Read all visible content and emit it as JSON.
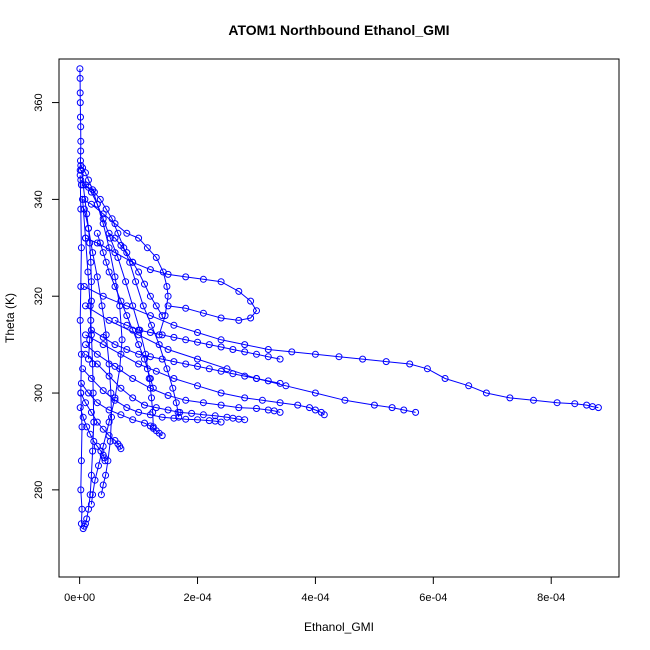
{
  "chart_data": {
    "type": "scatter",
    "title": "ATOM1 Northbound Ethanol_GMI",
    "xlabel": "Ethanol_GMI",
    "ylabel": "Theta (K)",
    "xlim": [
      -3.5e-05,
      0.000915
    ],
    "ylim": [
      262,
      369
    ],
    "grid": false,
    "legend": "none",
    "marker": "open-circle",
    "connected": true,
    "color": "#0000ff",
    "x_ticks": [
      {
        "value": 0,
        "label": "0e+00"
      },
      {
        "value": 0.0002,
        "label": "2e-04"
      },
      {
        "value": 0.0004,
        "label": "4e-04"
      },
      {
        "value": 0.0006,
        "label": "6e-04"
      },
      {
        "value": 0.0008,
        "label": "8e-04"
      }
    ],
    "y_ticks": [
      {
        "value": 280,
        "label": "280"
      },
      {
        "value": 300,
        "label": "300"
      },
      {
        "value": 320,
        "label": "320"
      },
      {
        "value": 340,
        "label": "340"
      },
      {
        "value": 360,
        "label": "360"
      }
    ],
    "series": [
      {
        "x": [
          5e-07,
          8e-07,
          1e-06,
          1.2e-06,
          1.5e-06,
          1.8e-06,
          2e-06,
          1.8e-06,
          1.5e-06,
          1e-06
        ],
        "y": [
          367,
          365,
          362,
          360,
          357,
          355,
          352,
          350,
          348,
          346
        ]
      },
      {
        "x": [
          2e-06,
          5e-06,
          1e-05,
          1.5e-05,
          2.2e-05,
          3e-05,
          4e-05,
          5e-05,
          6e-05,
          6.8e-05,
          7.2e-05,
          6.8e-05,
          6e-05,
          5e-05,
          4e-05,
          3.2e-05,
          2.6e-05,
          2.2e-05,
          2e-05
        ],
        "y": [
          347,
          346.5,
          345.5,
          344,
          342,
          339,
          335,
          330,
          324,
          318,
          311,
          305,
          299,
          294,
          289,
          285,
          282,
          279,
          277
        ]
      },
      {
        "x": [
          2e-06,
          1e-05,
          2e-05,
          3e-05,
          4e-05,
          5.2e-05,
          6.5e-05,
          7.8e-05,
          9e-05,
          0.000102,
          0.000112,
          0.000118,
          0.000122,
          0.000124,
          0.000125
        ],
        "y": [
          344,
          343,
          341.5,
          339,
          336,
          332,
          328,
          323,
          318,
          313,
          308,
          303,
          299,
          296,
          293
        ]
      },
      {
        "x": [
          3e-06,
          1.5e-05,
          2.5e-05,
          3.5e-05,
          4.5e-05,
          5.5e-05,
          6.5e-05,
          7.5e-05,
          8.5e-05,
          9.5e-05,
          0.000108,
          0.000122,
          0.000135,
          0.000148,
          0.000158,
          0.000164,
          0.000167,
          0.000168
        ],
        "y": [
          343,
          342.5,
          341.5,
          340,
          338,
          336,
          333,
          330,
          327,
          323,
          318,
          314,
          310,
          305,
          301,
          298,
          296,
          295
        ]
      },
      {
        "x": [
          5e-06,
          2e-05,
          4e-05,
          6e-05,
          8e-05,
          0.0001,
          0.000115,
          0.00013,
          0.000142,
          0.000148,
          0.00015,
          0.000145,
          0.000135
        ],
        "y": [
          340,
          339,
          337,
          335,
          333,
          332,
          330,
          328,
          325,
          322,
          320,
          316,
          312
        ]
      },
      {
        "x": [
          1e-05,
          3e-05,
          6e-05,
          9e-05,
          0.00012,
          0.00015,
          0.00018,
          0.00021,
          0.00024,
          0.00027,
          0.00029,
          0.0003,
          0.00029,
          0.00027,
          0.00024,
          0.00021,
          0.00018,
          0.00015
        ],
        "y": [
          332,
          331,
          329,
          327,
          325.5,
          324.5,
          324,
          323.5,
          323,
          321,
          319,
          317,
          315.5,
          315,
          315.5,
          316.5,
          317.5,
          318
        ]
      },
      {
        "x": [
          8e-06,
          4e-05,
          8e-05,
          0.00012,
          0.00016,
          0.0002,
          0.00024,
          0.00028,
          0.00032,
          0.00036,
          0.0004,
          0.00044,
          0.00048,
          0.00052,
          0.00056,
          0.00059,
          0.00062,
          0.00066,
          0.00069,
          0.00073,
          0.00077,
          0.00081,
          0.00084,
          0.00086,
          0.00087,
          0.00088
        ],
        "y": [
          322,
          320,
          318,
          316,
          314,
          312.5,
          311,
          310,
          309,
          308.5,
          308,
          307.5,
          307,
          306.5,
          306,
          305,
          303,
          301.5,
          300,
          299,
          298.5,
          298,
          297.8,
          297.5,
          297.2,
          297
        ]
      },
      {
        "x": [
          1e-05,
          5e-05,
          0.0001,
          0.00015,
          0.0002,
          0.00025,
          0.0003,
          0.00035,
          0.0004,
          0.00045,
          0.0005,
          0.00053,
          0.00055,
          0.00057
        ],
        "y": [
          318,
          315,
          312,
          309,
          307,
          305,
          303,
          301.5,
          300,
          298.5,
          297.5,
          297,
          296.5,
          296
        ]
      },
      {
        "x": [
          1e-05,
          4e-05,
          7e-05,
          0.0001,
          0.00013,
          0.00016,
          0.0002,
          0.00024,
          0.00028,
          0.00031,
          0.00034,
          0.00037,
          0.00039,
          0.0004,
          0.00041,
          0.000415
        ],
        "y": [
          312,
          310,
          308,
          306,
          304.5,
          303,
          301.5,
          300,
          299,
          298.5,
          298,
          297.5,
          297,
          296.5,
          296,
          295.5
        ]
      },
      {
        "x": [
          1e-05,
          3e-05,
          6e-05,
          9e-05,
          0.00012,
          0.00015,
          0.00018,
          0.00021,
          0.00024,
          0.00027,
          0.0003,
          0.00032,
          0.00033,
          0.00034
        ],
        "y": [
          310,
          308,
          305.5,
          303,
          301,
          299.5,
          298.5,
          298,
          297.5,
          297,
          296.8,
          296.5,
          296.3,
          296
        ]
      },
      {
        "x": [
          1e-05,
          3e-05,
          5e-05,
          7e-05,
          9e-05,
          0.00011,
          0.00013,
          0.00015,
          0.00017,
          0.00019,
          0.00021,
          0.00023,
          0.00025,
          0.00026,
          0.00027,
          0.00028
        ],
        "y": [
          308,
          306,
          303.5,
          301,
          299,
          297.5,
          297,
          296.5,
          296,
          295.8,
          295.5,
          295.3,
          295,
          294.8,
          294.6,
          294.5
        ]
      },
      {
        "x": [
          5e-06,
          2e-05,
          4e-05,
          6e-05,
          8e-05,
          0.0001,
          0.00012,
          0.00014,
          0.00016,
          0.00018,
          0.0002,
          0.00022,
          0.00023,
          0.00024
        ],
        "y": [
          305,
          303,
          300.5,
          298.5,
          297,
          296,
          295.5,
          295,
          294.8,
          294.6,
          294.5,
          294.3,
          294.2,
          294
        ]
      },
      {
        "x": [
          3e-06,
          1.5e-05,
          3e-05,
          5e-05,
          7e-05,
          9e-05,
          0.00011,
          0.00012,
          0.000125,
          0.00013,
          0.000135,
          0.00014
        ],
        "y": [
          302,
          300,
          298,
          296.5,
          295.5,
          294.5,
          293.8,
          293.2,
          292.7,
          292.2,
          291.7,
          291.2
        ]
      },
      {
        "x": [
          2e-06,
          1e-05,
          2e-05,
          3e-05,
          4e-05,
          5e-05,
          6e-05,
          6.5e-05,
          6.8e-05,
          7e-05
        ],
        "y": [
          300,
          298,
          296,
          294,
          292.5,
          291.2,
          290.2,
          289.5,
          289,
          288.5
        ]
      },
      {
        "x": [
          1e-06,
          6e-06,
          1.2e-05,
          1.8e-05,
          2.4e-05,
          3e-05,
          3.6e-05,
          4e-05,
          4.2e-05,
          4.3e-05
        ],
        "y": [
          297,
          295,
          293,
          291.5,
          290,
          289,
          288,
          287.2,
          286.6,
          286
        ]
      },
      {
        "x": [
          3e-05,
          3.5e-05,
          4e-05,
          4.5e-05,
          5e-05,
          6e-05,
          7e-05,
          8e-05,
          9e-05,
          0.0001,
          0.00011,
          0.000115,
          0.00012,
          0.000125
        ],
        "y": [
          333,
          331,
          329,
          327,
          325,
          322,
          319,
          316,
          313,
          310,
          307,
          305,
          303,
          301
        ]
      },
      {
        "x": [
          5e-05,
          6e-05,
          7e-05,
          8e-05,
          9e-05,
          0.0001,
          0.00011,
          0.00012,
          0.00013,
          0.00014
        ],
        "y": [
          333,
          332,
          330.5,
          329,
          327,
          325,
          322.5,
          320,
          318,
          316
        ]
      },
      {
        "x": [
          6e-05,
          8e-05,
          0.0001,
          0.00012,
          0.00014,
          0.00016,
          0.00018,
          0.0002,
          0.00022,
          0.00024,
          0.00026,
          0.00028,
          0.0003,
          0.00032,
          0.00034
        ],
        "y": [
          315,
          314,
          313,
          312.5,
          312,
          311.5,
          311,
          310.5,
          310,
          309.5,
          309,
          308.5,
          308,
          307.5,
          307
        ]
      },
      {
        "x": [
          2e-05,
          4e-05,
          6e-05,
          8e-05,
          0.0001,
          0.00012,
          0.00014,
          0.00016,
          0.00018,
          0.0002,
          0.00022,
          0.00024,
          0.00026,
          0.00028,
          0.0003,
          0.00032,
          0.00034
        ],
        "y": [
          313,
          311.5,
          310,
          309,
          308,
          307.5,
          307,
          306.5,
          306,
          305.5,
          305,
          304.5,
          304,
          303.5,
          303,
          302.5,
          302
        ]
      },
      {
        "x": [
          1e-06,
          2e-06,
          3e-06,
          2e-06,
          1e-06,
          3e-06,
          2e-06,
          4e-06,
          3e-06,
          2e-06,
          4e-06,
          3e-06
        ],
        "y": [
          345,
          338,
          330,
          322,
          315,
          308,
          300,
          293,
          286,
          280,
          276,
          273
        ]
      },
      {
        "x": [
          5e-06,
          1e-05,
          1.4e-05,
          1.8e-05,
          2e-05,
          2.2e-05,
          2.3e-05,
          2.4e-05,
          2.2e-05,
          2e-05,
          1.8e-05,
          1.5e-05,
          1.2e-05,
          1e-05,
          8e-06,
          6e-06
        ],
        "y": [
          340,
          332,
          325,
          318,
          312,
          306,
          300,
          294,
          288,
          283,
          279,
          276,
          274,
          273,
          272.5,
          272
        ]
      },
      {
        "x": [
          8e-06,
          1.5e-05,
          2.2e-05,
          3e-05,
          3.8e-05,
          4.5e-05,
          5e-05,
          5.3e-05,
          5.4e-05,
          5.2e-05,
          4.8e-05,
          4.4e-05,
          4e-05,
          3.7e-05
        ],
        "y": [
          338,
          334,
          329,
          324,
          318,
          312,
          306,
          300,
          295,
          290,
          286,
          283,
          281,
          279
        ]
      },
      {
        "x": [
          3e-06,
          6e-06,
          9e-06,
          1.2e-05,
          1.5e-05,
          1.7e-05,
          1.9e-05,
          2e-05,
          2e-05,
          1.9e-05,
          1.7e-05,
          1.5e-05
        ],
        "y": [
          346,
          343,
          340,
          337,
          334,
          331,
          327,
          323,
          319,
          315,
          311,
          307
        ]
      }
    ]
  }
}
